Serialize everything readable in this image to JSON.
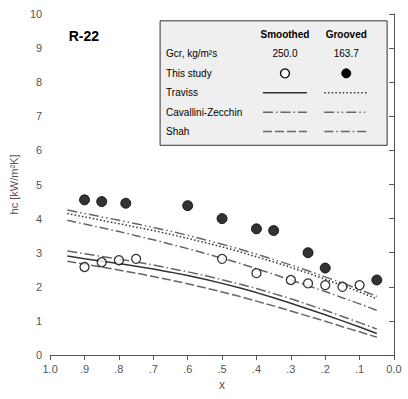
{
  "chart_data": {
    "type": "line",
    "title": "R-22",
    "xlabel": "x",
    "ylabel": "hc [kW/m²K]",
    "xlim": [
      1.0,
      0.0
    ],
    "ylim": [
      0,
      10
    ],
    "xticks": [
      {
        "value": 1.0,
        "label": "1.0"
      },
      {
        "value": 0.9,
        "label": ".9"
      },
      {
        "value": 0.8,
        "label": ".8"
      },
      {
        "value": 0.7,
        "label": ".7"
      },
      {
        "value": 0.6,
        "label": ".6"
      },
      {
        "value": 0.5,
        "label": ".5"
      },
      {
        "value": 0.4,
        "label": ".4"
      },
      {
        "value": 0.3,
        "label": ".3"
      },
      {
        "value": 0.2,
        "label": ".2"
      },
      {
        "value": 0.1,
        "label": ".1"
      },
      {
        "value": 0.0,
        "label": "0.0"
      }
    ],
    "yticks": [
      0,
      1,
      2,
      3,
      4,
      5,
      6,
      7,
      8,
      9,
      10
    ],
    "grid": false,
    "legend": "upper right",
    "legend_table": {
      "columns": [
        "Smoothed",
        "Grooved"
      ],
      "info_rows": [
        {
          "label": "Gcr, kg/m²s",
          "cells": [
            "250.0",
            "163.7"
          ]
        }
      ],
      "rows": [
        "This study",
        "Traviss",
        "Cavallini-Zecchin",
        "Shah"
      ]
    },
    "series": [
      {
        "name": "Traviss",
        "group": "Smoothed",
        "type": "line",
        "color": "#333333",
        "line_style": "solid",
        "x": [
          0.95,
          0.9,
          0.85,
          0.8,
          0.75,
          0.7,
          0.65,
          0.6,
          0.55,
          0.5,
          0.45,
          0.4,
          0.35,
          0.3,
          0.25,
          0.2,
          0.15,
          0.1,
          0.05
        ],
        "values": [
          2.9,
          2.82,
          2.75,
          2.68,
          2.6,
          2.52,
          2.43,
          2.33,
          2.22,
          2.1,
          1.97,
          1.83,
          1.68,
          1.52,
          1.35,
          1.18,
          1.0,
          0.82,
          0.63
        ]
      },
      {
        "name": "Cavallini-Zecchin",
        "group": "Smoothed",
        "type": "line",
        "color": "#666666",
        "line_style": "long_dash_dot",
        "x": [
          0.95,
          0.9,
          0.85,
          0.8,
          0.75,
          0.7,
          0.65,
          0.6,
          0.55,
          0.5,
          0.45,
          0.4,
          0.35,
          0.3,
          0.25,
          0.2,
          0.15,
          0.1,
          0.05
        ],
        "values": [
          3.05,
          2.97,
          2.89,
          2.81,
          2.73,
          2.64,
          2.54,
          2.44,
          2.33,
          2.21,
          2.08,
          1.95,
          1.8,
          1.65,
          1.48,
          1.31,
          1.13,
          0.95,
          0.76
        ]
      },
      {
        "name": "Shah",
        "group": "Smoothed",
        "type": "line",
        "color": "#666666",
        "line_style": "dashed",
        "x": [
          0.95,
          0.9,
          0.85,
          0.8,
          0.75,
          0.7,
          0.65,
          0.6,
          0.55,
          0.5,
          0.45,
          0.4,
          0.35,
          0.3,
          0.25,
          0.2,
          0.15,
          0.1,
          0.05
        ],
        "values": [
          2.75,
          2.66,
          2.58,
          2.49,
          2.4,
          2.3,
          2.2,
          2.09,
          1.97,
          1.85,
          1.72,
          1.58,
          1.44,
          1.29,
          1.14,
          0.99,
          0.83,
          0.68,
          0.52
        ]
      },
      {
        "name": "Traviss",
        "group": "Grooved",
        "type": "line",
        "color": "#333333",
        "line_style": "dotted",
        "x": [
          0.95,
          0.9,
          0.85,
          0.8,
          0.75,
          0.7,
          0.65,
          0.6,
          0.55,
          0.5,
          0.45,
          0.4,
          0.35,
          0.3,
          0.25,
          0.2,
          0.15,
          0.1,
          0.05
        ],
        "values": [
          4.15,
          4.05,
          3.95,
          3.85,
          3.75,
          3.65,
          3.54,
          3.42,
          3.3,
          3.17,
          3.03,
          2.88,
          2.73,
          2.57,
          2.4,
          2.22,
          2.04,
          1.85,
          1.65
        ]
      },
      {
        "name": "Cavallini-Zecchin",
        "group": "Grooved",
        "type": "line",
        "color": "#666666",
        "line_style": "long_dash_dot_dot",
        "x": [
          0.95,
          0.9,
          0.85,
          0.8,
          0.75,
          0.7,
          0.65,
          0.6,
          0.55,
          0.5,
          0.45,
          0.4,
          0.35,
          0.3,
          0.25,
          0.2,
          0.15,
          0.1,
          0.05
        ],
        "values": [
          4.25,
          4.15,
          4.05,
          3.95,
          3.85,
          3.74,
          3.63,
          3.51,
          3.38,
          3.25,
          3.11,
          2.96,
          2.8,
          2.64,
          2.47,
          2.29,
          2.11,
          1.92,
          1.72
        ]
      },
      {
        "name": "Shah",
        "group": "Grooved",
        "type": "line",
        "color": "#666666",
        "line_style": "dash_dot",
        "x": [
          0.95,
          0.9,
          0.85,
          0.8,
          0.75,
          0.7,
          0.65,
          0.6,
          0.55,
          0.5,
          0.45,
          0.4,
          0.35,
          0.3,
          0.25,
          0.2,
          0.15,
          0.1,
          0.05
        ],
        "values": [
          3.95,
          3.84,
          3.73,
          3.62,
          3.5,
          3.38,
          3.25,
          3.12,
          2.98,
          2.84,
          2.69,
          2.53,
          2.37,
          2.2,
          2.03,
          1.86,
          1.68,
          1.5,
          1.31
        ]
      },
      {
        "name": "This study",
        "group": "Smoothed",
        "type": "scatter",
        "color": "#000000",
        "marker": "open_circle",
        "x": [
          0.9,
          0.85,
          0.8,
          0.75,
          0.5,
          0.4,
          0.3,
          0.25,
          0.2,
          0.15,
          0.1
        ],
        "values": [
          2.58,
          2.72,
          2.78,
          2.82,
          2.82,
          2.4,
          2.2,
          2.1,
          2.05,
          2.0,
          2.05
        ]
      },
      {
        "name": "This study",
        "group": "Grooved",
        "type": "scatter",
        "color": "#000000",
        "marker": "filled_circle",
        "x": [
          0.9,
          0.85,
          0.78,
          0.6,
          0.5,
          0.4,
          0.35,
          0.25,
          0.2,
          0.05
        ],
        "values": [
          4.55,
          4.5,
          4.45,
          4.38,
          4.0,
          3.7,
          3.65,
          3.0,
          2.55,
          2.2
        ]
      }
    ]
  }
}
